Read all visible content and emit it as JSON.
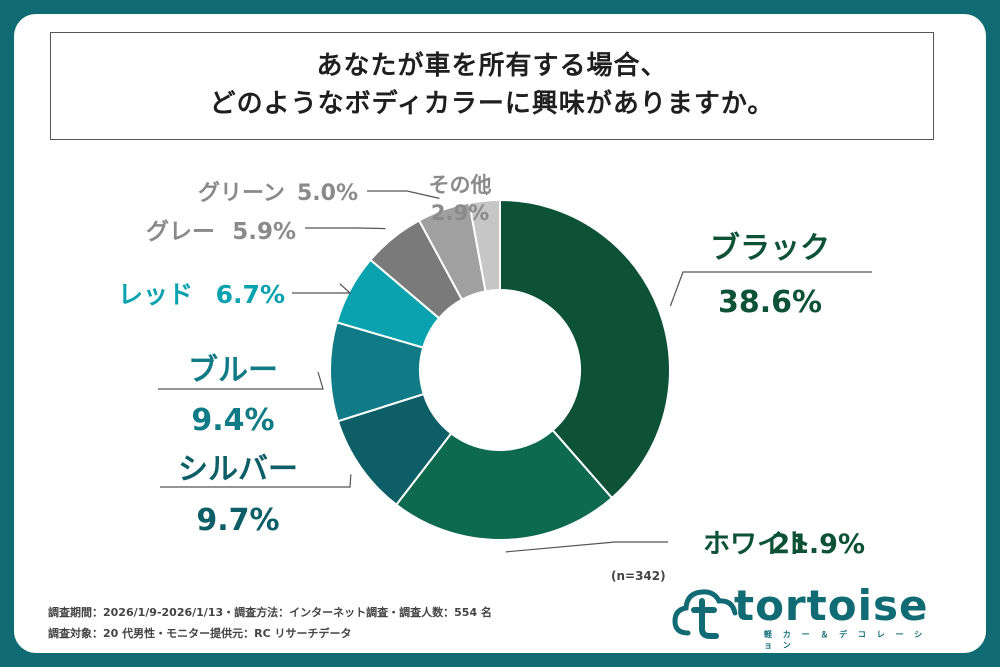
{
  "title": {
    "line1": "あなたが車を所有する場合、",
    "line2": "どのようなボディカラーに興味がありますか。"
  },
  "chart_data": {
    "type": "pie",
    "donut": true,
    "n_note": "(n=342)",
    "series": [
      {
        "name": "ブラック",
        "value": 38.6,
        "value_label": "38.6%",
        "color": "#0d5237",
        "label_color": "#0d5237"
      },
      {
        "name": "ホワイト",
        "value": 21.9,
        "value_label": "21.9%",
        "color": "#0d6a4e",
        "label_color": "#0d5237"
      },
      {
        "name": "シルバー",
        "value": 9.7,
        "value_label": "9.7%",
        "color": "#0e5e68",
        "label_color": "#0e5e68"
      },
      {
        "name": "ブルー",
        "value": 9.4,
        "value_label": "9.4%",
        "color": "#107a86",
        "label_color": "#107a86"
      },
      {
        "name": "レッド",
        "value": 6.7,
        "value_label": "6.7%",
        "color": "#0aa2ae",
        "label_color": "#0aa2ae"
      },
      {
        "name": "グレー",
        "value": 5.9,
        "value_label": "5.9%",
        "color": "#7a7a7a",
        "label_color": "#8a8a8a"
      },
      {
        "name": "グリーン",
        "value": 5.0,
        "value_label": "5.0%",
        "color": "#a0a0a0",
        "label_color": "#8a8a8a"
      },
      {
        "name": "その他",
        "value": 2.9,
        "value_label": "2.9%",
        "color": "#c6c6c6",
        "label_color": "#8a8a8a"
      }
    ]
  },
  "footer": {
    "line1": "調査期間：2026/1/9-2026/1/13・調査方法：インターネット調査・調査人数：554 名",
    "line2": "調査対象：20 代男性・モニター提供元：RC リサーチデータ"
  },
  "logo": {
    "wordmark": "tortoise",
    "tagline": "軽 カ ー ＆ デ コ レ ー シ ョ ン"
  }
}
